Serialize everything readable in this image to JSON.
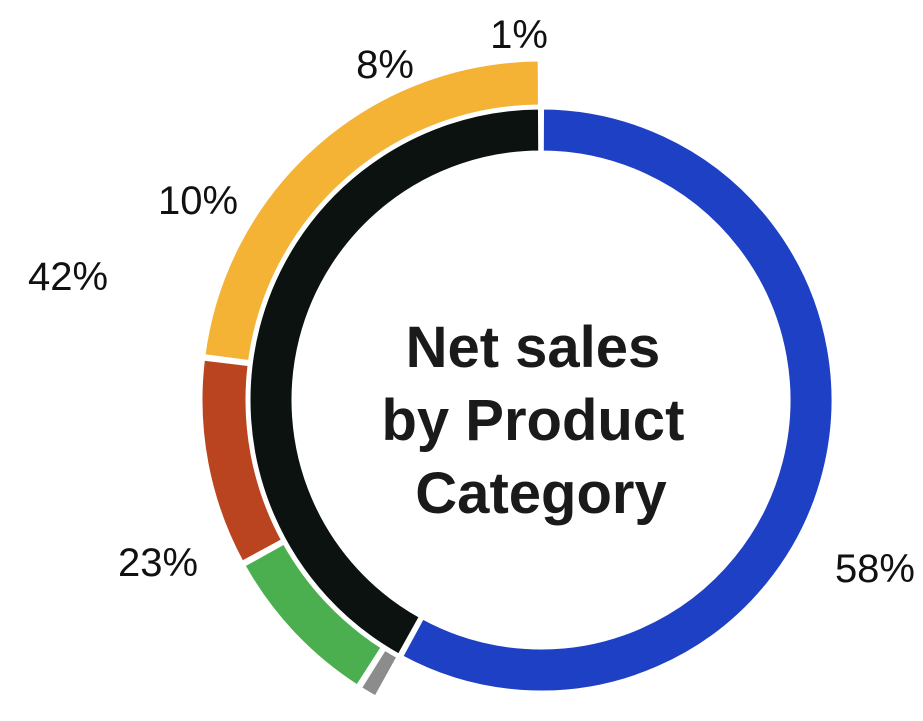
{
  "chart_data": {
    "type": "pie",
    "title_lines": [
      "Net sales",
      "by Product",
      "Category"
    ],
    "inner_ring": [
      {
        "label": "58%",
        "value": 58,
        "color": "#1e40c4"
      },
      {
        "label": "42%",
        "value": 42,
        "color": "#0b1210"
      }
    ],
    "outer_ring": [
      {
        "label": "23%",
        "value": 23,
        "color": "#f5b335"
      },
      {
        "label": "10%",
        "value": 10,
        "color": "#b9441f"
      },
      {
        "label": "8%",
        "value": 8,
        "color": "#4caf4f"
      },
      {
        "label": "1%",
        "value": 1,
        "color": "#8c8c8c"
      }
    ]
  }
}
